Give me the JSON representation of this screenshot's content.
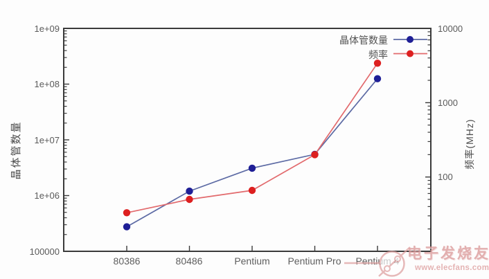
{
  "chart_data": {
    "type": "line",
    "title": "",
    "categories": [
      "80386",
      "80486",
      "Pentium",
      "Pentium Pro",
      "Pentium 4"
    ],
    "series": [
      {
        "name": "晶体管数量",
        "axis": "y1",
        "line_color": "#5c6aa4",
        "point_color": "#1f1f96",
        "values": [
          275000,
          1200000,
          3100000,
          5500000,
          125000000
        ]
      },
      {
        "name": "频率",
        "axis": "y2",
        "line_color": "#e26a6d",
        "point_color": "#dd2020",
        "values": [
          33,
          50,
          66,
          200,
          3400
        ]
      }
    ],
    "y1": {
      "label": "晶体管数量",
      "scale": "log",
      "lim": [
        100000,
        1000000000
      ],
      "ticks": [
        "1e+09",
        "1e+08",
        "1e+07",
        "1e+06",
        "100000"
      ]
    },
    "y2": {
      "label": "频率(MHz)",
      "scale": "log",
      "lim": [
        10,
        10000
      ],
      "ticks": [
        "10000",
        "1000",
        "100"
      ]
    },
    "xlabel": "",
    "grid": false,
    "legend_position": "top-right-inside",
    "frame_color": "#3a3a3a"
  },
  "watermark": {
    "site_name": "电子发烧友",
    "site_url": "www.elecfans.com",
    "color": "#dc9c9c"
  }
}
